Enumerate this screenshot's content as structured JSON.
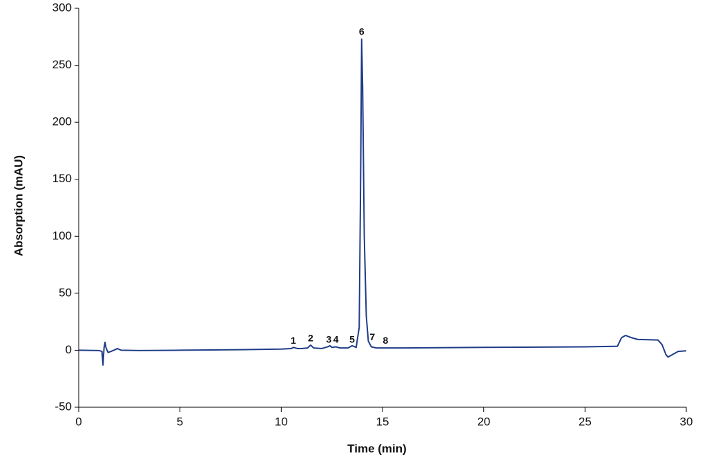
{
  "chart_data": {
    "type": "line",
    "x_label": "Time (min)",
    "y_label": "Absorption (mAU)",
    "x": [
      0,
      1.0,
      1.15,
      1.2,
      1.25,
      1.3,
      1.35,
      1.45,
      1.6,
      1.8,
      1.9,
      2.1,
      3,
      5,
      8,
      10,
      10.5,
      10.6,
      10.8,
      11,
      11.3,
      11.45,
      11.6,
      12,
      12.3,
      12.4,
      12.5,
      12.7,
      12.9,
      13.3,
      13.5,
      13.7,
      13.85,
      13.92,
      13.97,
      14.02,
      14.1,
      14.2,
      14.3,
      14.45,
      14.7,
      15,
      16,
      20,
      25,
      26.6,
      26.8,
      27.0,
      27.3,
      27.6,
      28.6,
      28.8,
      29.0,
      29.1,
      29.3,
      29.6,
      30
    ],
    "values": [
      0,
      -0.3,
      -1,
      -13,
      2,
      7,
      2,
      -2,
      -1,
      0.5,
      1.5,
      0,
      -0.3,
      0,
      0.5,
      1,
      1.5,
      2.5,
      1.5,
      1.5,
      2,
      4.5,
      2,
      1.5,
      3,
      4,
      2.5,
      3,
      2,
      2,
      4,
      2.5,
      20,
      150,
      273,
      230,
      100,
      30,
      8,
      3,
      2,
      2,
      2,
      2.5,
      3,
      3.5,
      11,
      13,
      11,
      9.5,
      9,
      5,
      -4,
      -6,
      -4,
      -1,
      -0.5
    ],
    "color": "#1f3c88",
    "xlim": [
      0,
      30
    ],
    "xticks": [
      0,
      5,
      10,
      15,
      20,
      25,
      30
    ],
    "ylim": [
      -50,
      300
    ],
    "yticks": [
      -50,
      0,
      50,
      100,
      150,
      200,
      250,
      300
    ],
    "annotations": [
      {
        "label": "1",
        "x": 10.6,
        "y": 8
      },
      {
        "label": "2",
        "x": 11.45,
        "y": 10
      },
      {
        "label": "3",
        "x": 12.35,
        "y": 9
      },
      {
        "label": "4",
        "x": 12.7,
        "y": 9
      },
      {
        "label": "5",
        "x": 13.5,
        "y": 9
      },
      {
        "label": "6",
        "x": 13.97,
        "y": 279
      },
      {
        "label": "7",
        "x": 14.5,
        "y": 11
      },
      {
        "label": "8",
        "x": 15.15,
        "y": 8
      }
    ]
  }
}
